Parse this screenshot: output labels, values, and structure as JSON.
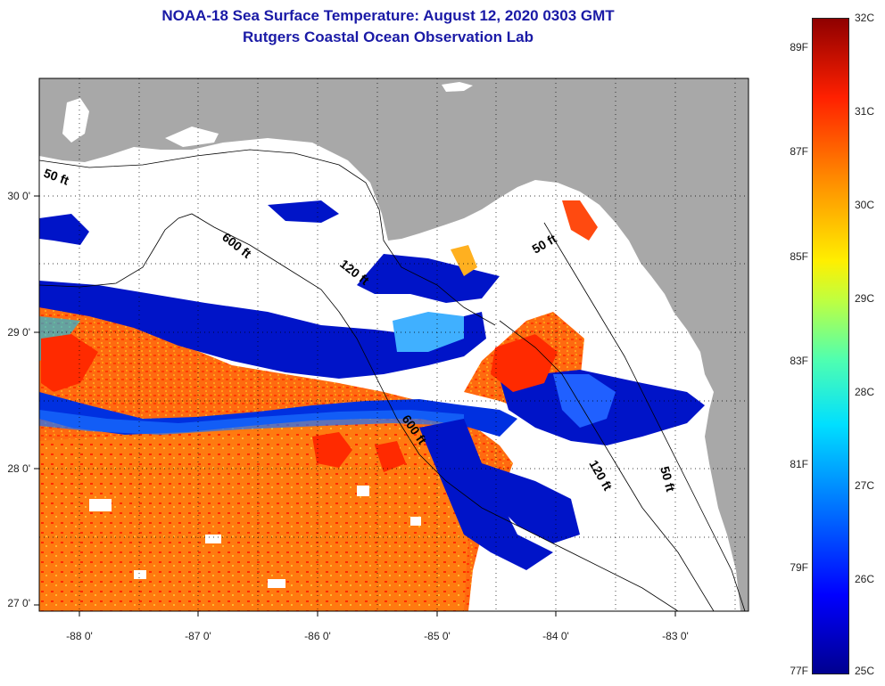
{
  "title_line1": "NOAA-18 Sea Surface Temperature:  August 12, 2020 0303 GMT",
  "title_line2": "Rutgers Coastal Ocean Observation Lab",
  "map": {
    "latitude_labels": [
      "30 0'",
      "29 0'",
      "28 0'",
      "27 0'"
    ],
    "longitude_labels": [
      "-88 0'",
      "-87 0'",
      "-86 0'",
      "-85 0'",
      "-84 0'",
      "-83 0'"
    ],
    "lat_range": [
      26.95,
      30.85
    ],
    "lon_range": [
      -88.3,
      -82.4
    ],
    "depth_contour_labels": [
      "50 ft",
      "600 ft",
      "120 ft",
      "50 ft",
      "600 ft",
      "120 ft",
      "50 ft"
    ],
    "colors": {
      "land": "#a8a8a8",
      "cloud": "#ffffff",
      "contour": "#000000",
      "grid": "#000000"
    }
  },
  "colorbar": {
    "fahrenheit_labels": [
      "89F",
      "87F",
      "85F",
      "83F",
      "81F",
      "79F",
      "77F"
    ],
    "celsius_labels": [
      "32C",
      "31C",
      "30C",
      "29C",
      "28C",
      "27C",
      "26C",
      "25C"
    ],
    "range_c": [
      25,
      32
    ],
    "colors": [
      "#00008f",
      "#0000ff",
      "#00dfff",
      "#ffef00",
      "#ff2000",
      "#8f0000"
    ]
  }
}
